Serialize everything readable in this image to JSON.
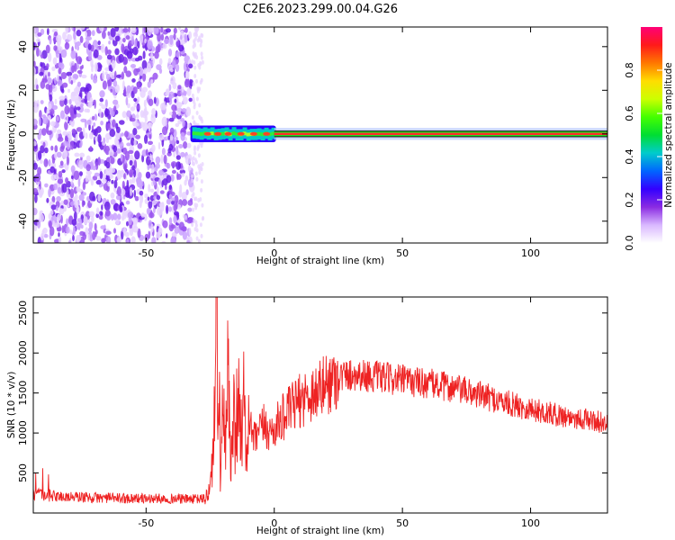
{
  "title": "C2E6.2023.299.00.04.G26",
  "chart_data": [
    {
      "type": "heatmap",
      "xlabel": "Height of straight line (km)",
      "ylabel": "Frequency (Hz)",
      "xlim": [
        -94,
        130
      ],
      "ylim": [
        -50,
        49
      ],
      "x_ticks": [
        -50,
        0,
        50,
        100
      ],
      "y_ticks": [
        -40,
        -20,
        0,
        20,
        40
      ],
      "x_tick_labels": [
        "-50",
        "0",
        "50",
        "100"
      ],
      "y_tick_labels": [
        "-40",
        "-20",
        "0",
        "20",
        "40"
      ],
      "colorbar": {
        "label": "Normalized spectral amplitude",
        "range": [
          0,
          1
        ],
        "ticks": [
          0.0,
          0.2,
          0.4,
          0.6,
          0.8
        ],
        "tick_labels": [
          "0.0",
          "0.2",
          "0.4",
          "0.6",
          "0.8"
        ],
        "colormap": [
          "#ffffff",
          "#d9b8ff",
          "#8a2be2",
          "#3300ff",
          "#0066ff",
          "#00cccc",
          "#00dd33",
          "#44ff00",
          "#ccff00",
          "#ffdd00",
          "#ff7700",
          "#ff1a1a",
          "#ff0077"
        ]
      },
      "regions": [
        {
          "x_range": [
            -94,
            -32
          ],
          "freq_range": [
            -50,
            49
          ],
          "level": "noise 0.0-0.25"
        },
        {
          "x_range": [
            -32,
            0
          ],
          "freq_center": 0,
          "freq_halfwidth": 3,
          "level": "0.2-0.9"
        },
        {
          "x_range": [
            0,
            130
          ],
          "freq_center": 0,
          "freq_halfwidth": 1.5,
          "level": "1.0"
        }
      ],
      "grid": false
    },
    {
      "type": "line",
      "xlabel": "Height of straight line (km)",
      "ylabel": "SNR (10 * v/v)",
      "xlim": [
        -94,
        130
      ],
      "ylim": [
        0,
        2700
      ],
      "x_ticks": [
        -50,
        0,
        50,
        100
      ],
      "y_ticks": [
        500,
        1000,
        1500,
        2000,
        2500
      ],
      "x_tick_labels": [
        "-50",
        "0",
        "50",
        "100"
      ],
      "y_tick_labels": [
        "500",
        "1000",
        "1500",
        "2000",
        "2500"
      ],
      "series_color": "#ee2222",
      "x": [
        -94,
        -90,
        -85,
        -80,
        -75,
        -70,
        -65,
        -60,
        -55,
        -50,
        -45,
        -40,
        -35,
        -30,
        -27,
        -25,
        -24,
        -23,
        -22.5,
        -22,
        -21.5,
        -21,
        -20,
        -19,
        -18,
        -17,
        -16,
        -15,
        -14,
        -13,
        -12,
        -11,
        -10,
        -8,
        -6,
        -4,
        -2,
        0,
        2,
        5,
        8,
        10,
        12,
        15,
        18,
        20,
        22,
        25,
        28,
        30,
        32,
        35,
        38,
        40,
        45,
        50,
        55,
        60,
        65,
        70,
        75,
        80,
        85,
        90,
        95,
        100,
        105,
        110,
        115,
        120,
        125,
        130
      ],
      "values": [
        230,
        220,
        210,
        200,
        200,
        190,
        190,
        185,
        185,
        180,
        180,
        180,
        175,
        175,
        180,
        300,
        700,
        1500,
        2700,
        900,
        1900,
        400,
        1300,
        700,
        1800,
        500,
        1500,
        800,
        1900,
        900,
        1400,
        700,
        1200,
        900,
        1000,
        1100,
        1000,
        1050,
        1150,
        1250,
        1350,
        1400,
        1450,
        1500,
        1550,
        1600,
        1650,
        1700,
        1720,
        1730,
        1730,
        1720,
        1710,
        1700,
        1680,
        1660,
        1640,
        1620,
        1590,
        1560,
        1520,
        1480,
        1430,
        1380,
        1340,
        1300,
        1260,
        1230,
        1200,
        1180,
        1150,
        1120
      ],
      "grid": false
    }
  ]
}
